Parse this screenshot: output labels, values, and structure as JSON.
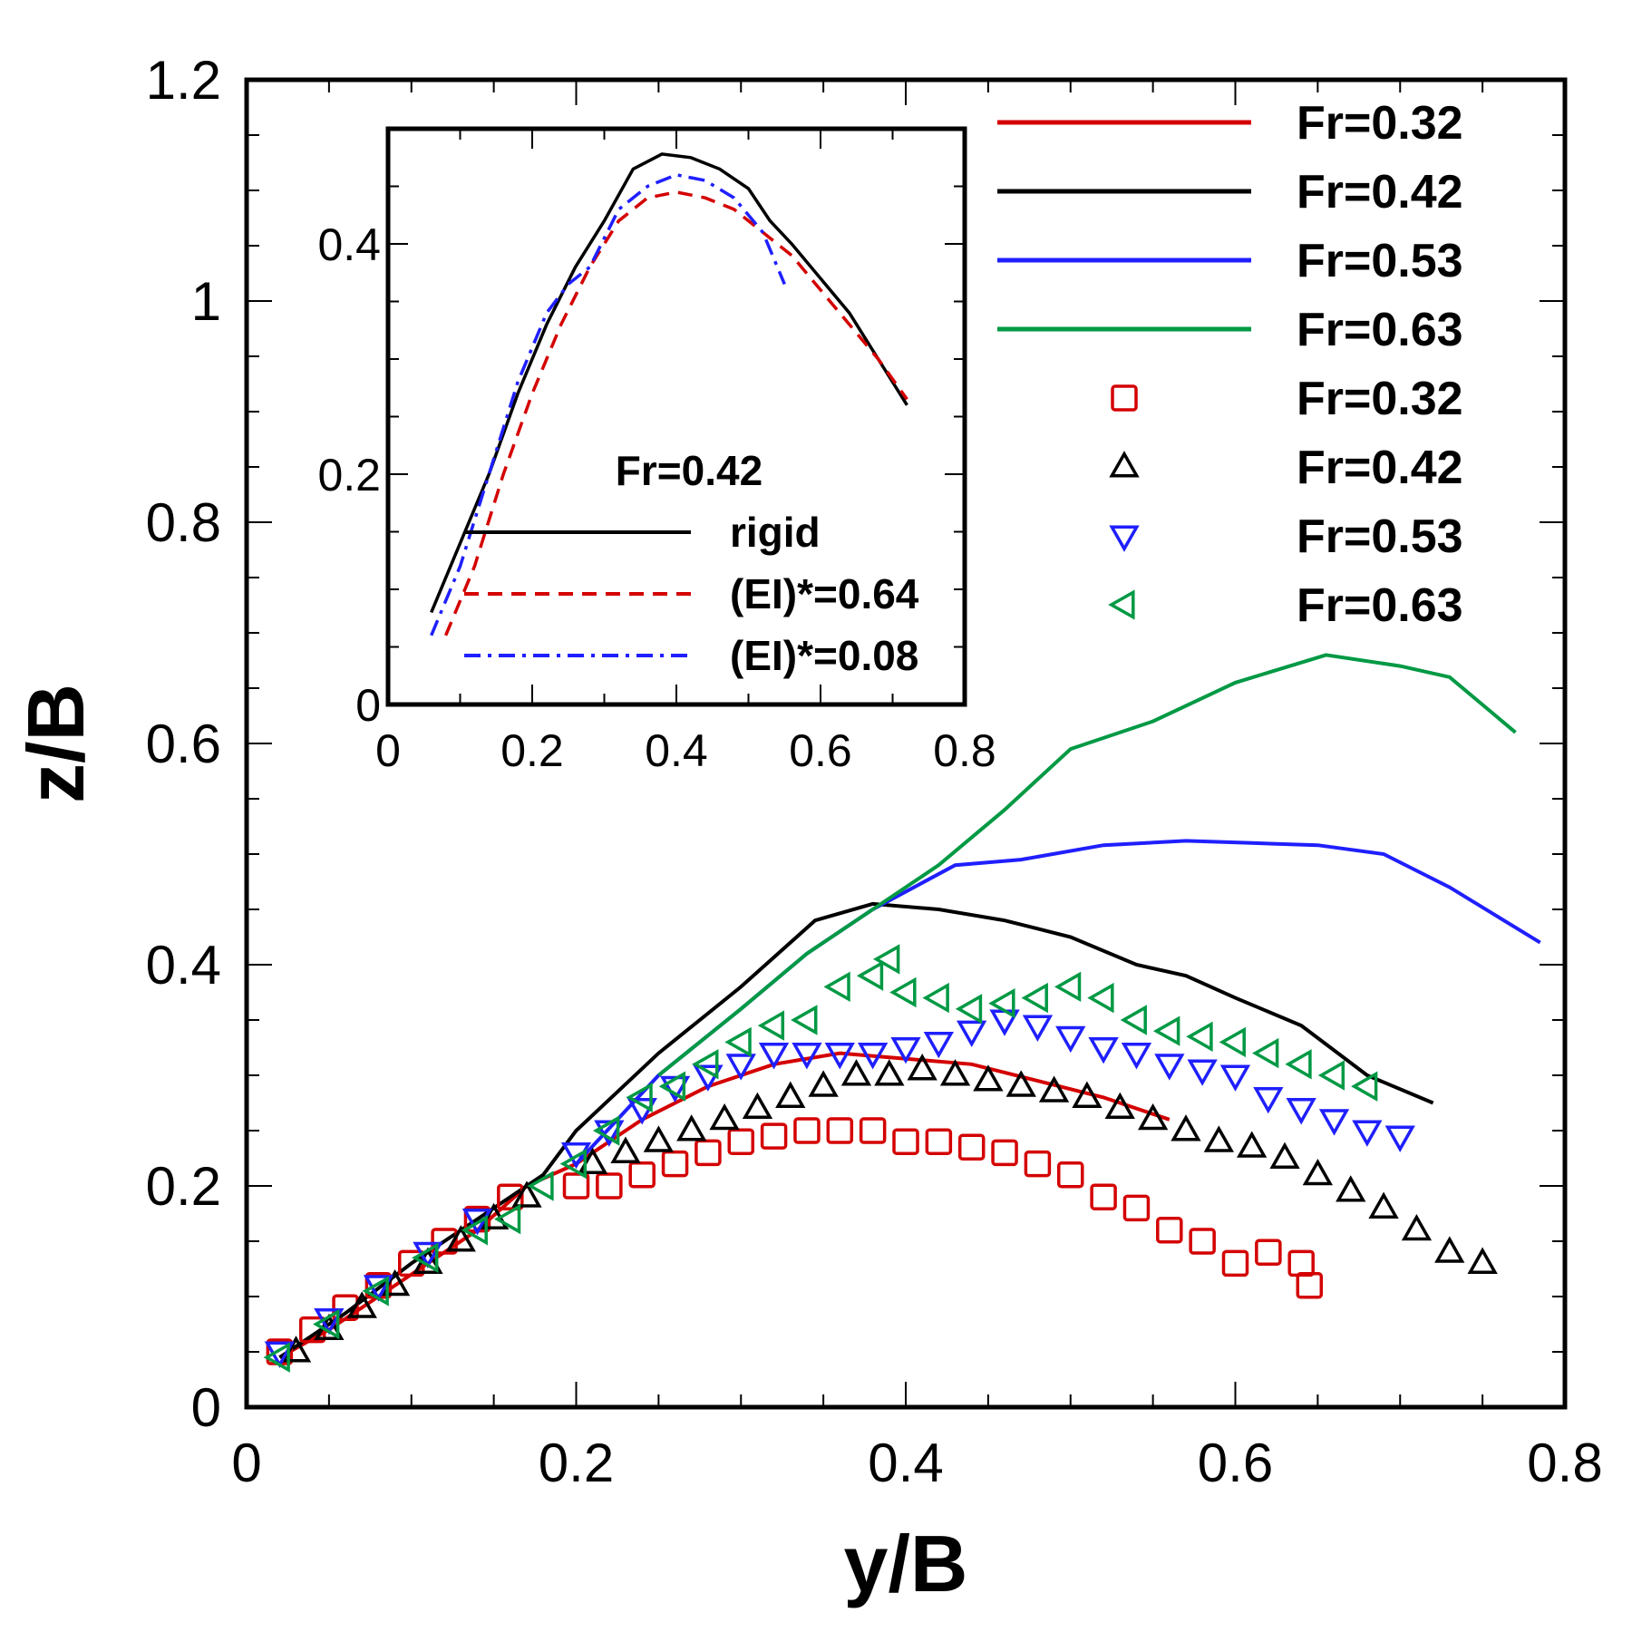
{
  "chart_data": {
    "type": "scatter",
    "xlabel": "y/B",
    "ylabel": "z/B",
    "xlim": [
      0,
      0.8
    ],
    "ylim": [
      0,
      1.2
    ],
    "x_ticks": [
      "0",
      "0.2",
      "0.4",
      "0.6",
      "0.8"
    ],
    "y_ticks": [
      "0",
      "0.2",
      "0.4",
      "0.6",
      "0.8",
      "1",
      "1.2"
    ],
    "legend_position": "top-right",
    "line_series": [
      {
        "name": "Fr=0.32",
        "color": "#d40000",
        "style": "solid",
        "points": [
          [
            0.02,
            0.045
          ],
          [
            0.05,
            0.07
          ],
          [
            0.08,
            0.1
          ],
          [
            0.11,
            0.13
          ],
          [
            0.14,
            0.16
          ],
          [
            0.17,
            0.2
          ],
          [
            0.2,
            0.22
          ],
          [
            0.24,
            0.26
          ],
          [
            0.28,
            0.29
          ],
          [
            0.32,
            0.31
          ],
          [
            0.36,
            0.32
          ],
          [
            0.4,
            0.315
          ],
          [
            0.44,
            0.31
          ],
          [
            0.48,
            0.295
          ],
          [
            0.52,
            0.28
          ],
          [
            0.56,
            0.26
          ]
        ]
      },
      {
        "name": "Fr=0.42",
        "color": "#000000",
        "style": "solid",
        "points": [
          [
            0.02,
            0.045
          ],
          [
            0.06,
            0.085
          ],
          [
            0.1,
            0.13
          ],
          [
            0.14,
            0.17
          ],
          [
            0.18,
            0.21
          ],
          [
            0.2,
            0.25
          ],
          [
            0.25,
            0.32
          ],
          [
            0.3,
            0.38
          ],
          [
            0.345,
            0.44
          ],
          [
            0.38,
            0.455
          ],
          [
            0.42,
            0.45
          ],
          [
            0.46,
            0.44
          ],
          [
            0.5,
            0.425
          ],
          [
            0.54,
            0.4
          ],
          [
            0.57,
            0.39
          ],
          [
            0.6,
            0.37
          ],
          [
            0.64,
            0.345
          ],
          [
            0.68,
            0.3
          ],
          [
            0.72,
            0.275
          ]
        ]
      },
      {
        "name": "Fr=0.53",
        "color": "#1f1fff",
        "style": "solid",
        "points": [
          [
            0.2,
            0.22
          ],
          [
            0.25,
            0.3
          ],
          [
            0.3,
            0.36
          ],
          [
            0.34,
            0.41
          ],
          [
            0.38,
            0.45
          ],
          [
            0.43,
            0.49
          ],
          [
            0.47,
            0.495
          ],
          [
            0.52,
            0.508
          ],
          [
            0.57,
            0.512
          ],
          [
            0.61,
            0.51
          ],
          [
            0.65,
            0.508
          ],
          [
            0.69,
            0.5
          ],
          [
            0.73,
            0.47
          ],
          [
            0.785,
            0.42
          ]
        ]
      },
      {
        "name": "Fr=0.63",
        "color": "#009944",
        "style": "solid",
        "points": [
          [
            0.25,
            0.3
          ],
          [
            0.3,
            0.36
          ],
          [
            0.34,
            0.41
          ],
          [
            0.38,
            0.45
          ],
          [
            0.42,
            0.49
          ],
          [
            0.46,
            0.54
          ],
          [
            0.5,
            0.595
          ],
          [
            0.55,
            0.62
          ],
          [
            0.6,
            0.655
          ],
          [
            0.655,
            0.68
          ],
          [
            0.7,
            0.67
          ],
          [
            0.73,
            0.66
          ],
          [
            0.77,
            0.61
          ]
        ]
      }
    ],
    "marker_series": [
      {
        "name": "Fr=0.32",
        "color": "#d40000",
        "marker": "square",
        "points": [
          [
            0.02,
            0.05
          ],
          [
            0.04,
            0.07
          ],
          [
            0.06,
            0.09
          ],
          [
            0.08,
            0.11
          ],
          [
            0.1,
            0.13
          ],
          [
            0.12,
            0.15
          ],
          [
            0.14,
            0.17
          ],
          [
            0.16,
            0.19
          ],
          [
            0.2,
            0.2
          ],
          [
            0.22,
            0.2
          ],
          [
            0.24,
            0.21
          ],
          [
            0.26,
            0.22
          ],
          [
            0.28,
            0.23
          ],
          [
            0.3,
            0.24
          ],
          [
            0.32,
            0.245
          ],
          [
            0.34,
            0.25
          ],
          [
            0.36,
            0.25
          ],
          [
            0.38,
            0.25
          ],
          [
            0.4,
            0.24
          ],
          [
            0.42,
            0.24
          ],
          [
            0.44,
            0.235
          ],
          [
            0.46,
            0.23
          ],
          [
            0.48,
            0.22
          ],
          [
            0.5,
            0.21
          ],
          [
            0.52,
            0.19
          ],
          [
            0.54,
            0.18
          ],
          [
            0.56,
            0.16
          ],
          [
            0.58,
            0.15
          ],
          [
            0.6,
            0.13
          ],
          [
            0.62,
            0.14
          ],
          [
            0.64,
            0.13
          ],
          [
            0.645,
            0.11
          ]
        ]
      },
      {
        "name": "Fr=0.42",
        "color": "#000000",
        "marker": "triangle-up",
        "points": [
          [
            0.03,
            0.05
          ],
          [
            0.05,
            0.07
          ],
          [
            0.07,
            0.09
          ],
          [
            0.09,
            0.11
          ],
          [
            0.11,
            0.13
          ],
          [
            0.13,
            0.15
          ],
          [
            0.15,
            0.17
          ],
          [
            0.17,
            0.19
          ],
          [
            0.21,
            0.22
          ],
          [
            0.23,
            0.23
          ],
          [
            0.25,
            0.24
          ],
          [
            0.27,
            0.25
          ],
          [
            0.29,
            0.26
          ],
          [
            0.31,
            0.27
          ],
          [
            0.33,
            0.28
          ],
          [
            0.35,
            0.29
          ],
          [
            0.37,
            0.3
          ],
          [
            0.39,
            0.3
          ],
          [
            0.41,
            0.305
          ],
          [
            0.43,
            0.3
          ],
          [
            0.45,
            0.295
          ],
          [
            0.47,
            0.29
          ],
          [
            0.49,
            0.285
          ],
          [
            0.51,
            0.28
          ],
          [
            0.53,
            0.27
          ],
          [
            0.55,
            0.26
          ],
          [
            0.57,
            0.25
          ],
          [
            0.59,
            0.24
          ],
          [
            0.61,
            0.235
          ],
          [
            0.63,
            0.225
          ],
          [
            0.65,
            0.21
          ],
          [
            0.67,
            0.195
          ],
          [
            0.69,
            0.18
          ],
          [
            0.71,
            0.16
          ],
          [
            0.73,
            0.14
          ],
          [
            0.75,
            0.13
          ]
        ]
      },
      {
        "name": "Fr=0.53",
        "color": "#1f1fff",
        "marker": "triangle-down",
        "points": [
          [
            0.02,
            0.05
          ],
          [
            0.05,
            0.08
          ],
          [
            0.08,
            0.11
          ],
          [
            0.11,
            0.14
          ],
          [
            0.14,
            0.17
          ],
          [
            0.2,
            0.23
          ],
          [
            0.22,
            0.25
          ],
          [
            0.24,
            0.27
          ],
          [
            0.26,
            0.29
          ],
          [
            0.28,
            0.3
          ],
          [
            0.3,
            0.31
          ],
          [
            0.32,
            0.32
          ],
          [
            0.34,
            0.32
          ],
          [
            0.36,
            0.32
          ],
          [
            0.38,
            0.32
          ],
          [
            0.4,
            0.325
          ],
          [
            0.42,
            0.33
          ],
          [
            0.44,
            0.34
          ],
          [
            0.46,
            0.35
          ],
          [
            0.48,
            0.345
          ],
          [
            0.5,
            0.335
          ],
          [
            0.52,
            0.325
          ],
          [
            0.54,
            0.32
          ],
          [
            0.56,
            0.31
          ],
          [
            0.58,
            0.305
          ],
          [
            0.6,
            0.3
          ],
          [
            0.62,
            0.28
          ],
          [
            0.64,
            0.27
          ],
          [
            0.66,
            0.26
          ],
          [
            0.68,
            0.25
          ],
          [
            0.7,
            0.245
          ]
        ]
      },
      {
        "name": "Fr=0.63",
        "color": "#009944",
        "marker": "triangle-left",
        "points": [
          [
            0.02,
            0.045
          ],
          [
            0.05,
            0.075
          ],
          [
            0.08,
            0.105
          ],
          [
            0.11,
            0.135
          ],
          [
            0.14,
            0.16
          ],
          [
            0.16,
            0.17
          ],
          [
            0.18,
            0.2
          ],
          [
            0.2,
            0.22
          ],
          [
            0.22,
            0.25
          ],
          [
            0.24,
            0.28
          ],
          [
            0.26,
            0.29
          ],
          [
            0.28,
            0.31
          ],
          [
            0.3,
            0.33
          ],
          [
            0.32,
            0.345
          ],
          [
            0.34,
            0.35
          ],
          [
            0.36,
            0.38
          ],
          [
            0.38,
            0.39
          ],
          [
            0.39,
            0.405
          ],
          [
            0.4,
            0.375
          ],
          [
            0.42,
            0.37
          ],
          [
            0.44,
            0.36
          ],
          [
            0.46,
            0.365
          ],
          [
            0.48,
            0.37
          ],
          [
            0.5,
            0.38
          ],
          [
            0.52,
            0.37
          ],
          [
            0.54,
            0.35
          ],
          [
            0.56,
            0.34
          ],
          [
            0.58,
            0.335
          ],
          [
            0.6,
            0.33
          ],
          [
            0.62,
            0.32
          ],
          [
            0.64,
            0.31
          ],
          [
            0.66,
            0.3
          ],
          [
            0.68,
            0.29
          ]
        ]
      }
    ],
    "inset": {
      "title": "Fr=0.42",
      "xlim": [
        0,
        0.8
      ],
      "ylim": [
        0,
        0.5
      ],
      "x_ticks": [
        "0",
        "0.2",
        "0.4",
        "0.6",
        "0.8"
      ],
      "y_ticks": [
        "0",
        "0.2",
        "0.4"
      ],
      "series": [
        {
          "name": "rigid",
          "color": "#000000",
          "style": "solid",
          "points": [
            [
              0.06,
              0.08
            ],
            [
              0.1,
              0.14
            ],
            [
              0.14,
              0.2
            ],
            [
              0.18,
              0.27
            ],
            [
              0.22,
              0.33
            ],
            [
              0.26,
              0.38
            ],
            [
              0.3,
              0.42
            ],
            [
              0.34,
              0.465
            ],
            [
              0.38,
              0.478
            ],
            [
              0.42,
              0.475
            ],
            [
              0.46,
              0.465
            ],
            [
              0.5,
              0.448
            ],
            [
              0.53,
              0.42
            ],
            [
              0.56,
              0.4
            ],
            [
              0.6,
              0.37
            ],
            [
              0.64,
              0.34
            ],
            [
              0.68,
              0.3
            ],
            [
              0.72,
              0.26
            ]
          ]
        },
        {
          "name": "(EI)*=0.64",
          "color": "#d40000",
          "style": "dashed",
          "points": [
            [
              0.08,
              0.06
            ],
            [
              0.12,
              0.12
            ],
            [
              0.16,
              0.2
            ],
            [
              0.2,
              0.27
            ],
            [
              0.24,
              0.33
            ],
            [
              0.28,
              0.38
            ],
            [
              0.32,
              0.42
            ],
            [
              0.36,
              0.44
            ],
            [
              0.4,
              0.445
            ],
            [
              0.44,
              0.44
            ],
            [
              0.48,
              0.43
            ],
            [
              0.52,
              0.41
            ],
            [
              0.56,
              0.39
            ],
            [
              0.6,
              0.36
            ],
            [
              0.64,
              0.33
            ],
            [
              0.68,
              0.3
            ],
            [
              0.72,
              0.265
            ]
          ]
        },
        {
          "name": "(EI)*=0.08",
          "color": "#1f1fff",
          "style": "dashdot",
          "points": [
            [
              0.06,
              0.06
            ],
            [
              0.1,
              0.12
            ],
            [
              0.14,
              0.2
            ],
            [
              0.18,
              0.28
            ],
            [
              0.22,
              0.34
            ],
            [
              0.25,
              0.365
            ],
            [
              0.28,
              0.38
            ],
            [
              0.32,
              0.43
            ],
            [
              0.36,
              0.45
            ],
            [
              0.4,
              0.46
            ],
            [
              0.44,
              0.455
            ],
            [
              0.48,
              0.44
            ],
            [
              0.52,
              0.41
            ],
            [
              0.55,
              0.365
            ]
          ]
        }
      ]
    }
  }
}
